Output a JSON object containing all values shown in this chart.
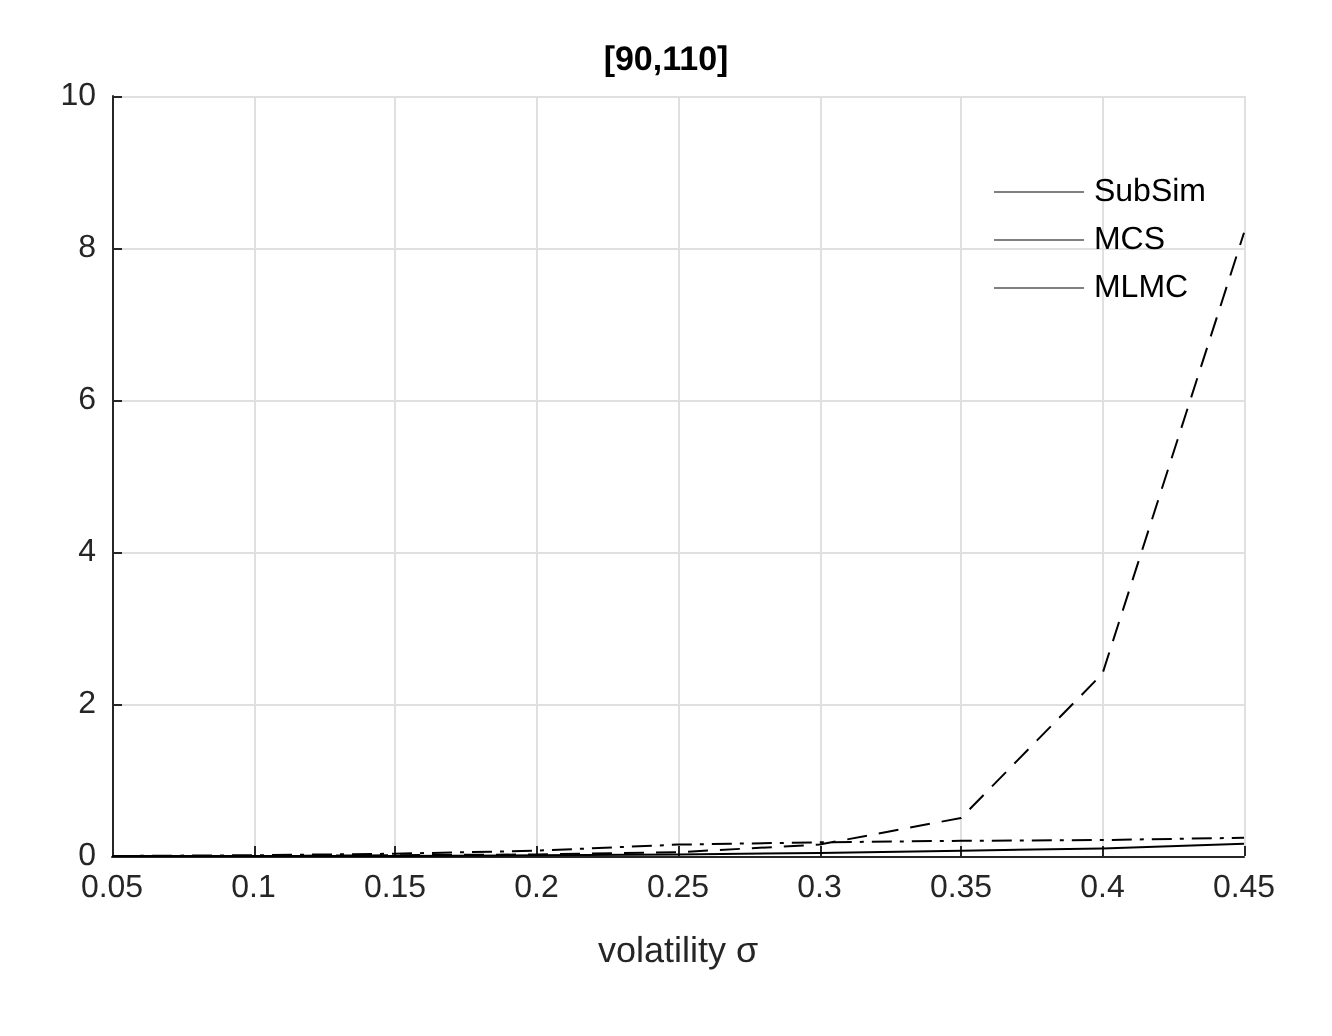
{
  "chart_data": {
    "type": "line",
    "title": "[90,110]",
    "xlabel": "volatility σ",
    "x": [
      0.05,
      0.1,
      0.15,
      0.2,
      0.25,
      0.3,
      0.35,
      0.4,
      0.45
    ],
    "series": [
      {
        "name": "SubSim",
        "color": "#000000",
        "line_style": "solid",
        "values": [
          0,
          0,
          0,
          0.01,
          0.02,
          0.04,
          0.07,
          0.1,
          0.16
        ]
      },
      {
        "name": "MCS",
        "color": "#000000",
        "line_style": "dashed",
        "values": [
          0,
          0,
          0.01,
          0.02,
          0.05,
          0.15,
          0.5,
          2.4,
          8.2
        ]
      },
      {
        "name": "MLMC",
        "color": "#000000",
        "line_style": "dashdot",
        "values": [
          0,
          0.01,
          0.03,
          0.07,
          0.15,
          0.18,
          0.2,
          0.21,
          0.24
        ]
      }
    ],
    "xlim": [
      0.05,
      0.45
    ],
    "xticks": [
      0.05,
      0.1,
      0.15,
      0.2,
      0.25,
      0.3,
      0.35,
      0.4,
      0.45
    ],
    "ylim": [
      0,
      10
    ],
    "yticks": [
      0,
      2,
      4,
      6,
      8,
      10
    ],
    "grid": true,
    "legend": "top right",
    "marker": "none"
  }
}
